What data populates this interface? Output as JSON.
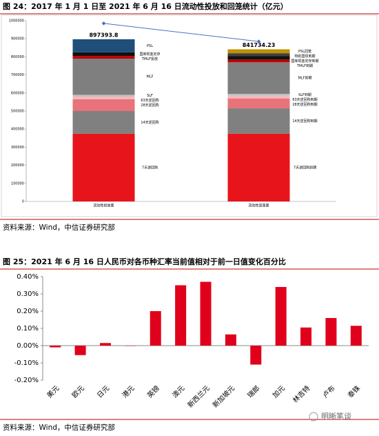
{
  "chart_data": [
    {
      "type": "stacked-bar",
      "title": "图 24：2017 年 1 月 1 日至 2021 年 6 月 16 日流动性投放和回笼统计（亿元）",
      "source": "资料来源：Wind，中信证券研究部",
      "categories": [
        "流动性投放量",
        "流动性回笼量"
      ],
      "stacks": [
        {
          "total": 897393.8,
          "segments": [
            {
              "name": "7天逆回购",
              "color": "#e8141b",
              "value": 375000
            },
            {
              "name": "14天逆回购",
              "color": "#808080",
              "value": 125000
            },
            {
              "name": "28天逆回购",
              "color": "#e8737a",
              "value": 65000
            },
            {
              "name": "63天逆回购",
              "color": "#f4b8bc",
              "value": 15000
            },
            {
              "name": "SLF",
              "color": "#c0c0c0",
              "value": 10000
            },
            {
              "name": "MLF",
              "color": "#7f7f7f",
              "value": 200000
            },
            {
              "name": "TMLF投放",
              "color": "#c00000",
              "value": 15000
            },
            {
              "name": "国库现金定存",
              "color": "#111111",
              "value": 20000
            },
            {
              "name": "PSL",
              "color": "#1f4e79",
              "value": 72393.8
            }
          ]
        },
        {
          "total": 841734.23,
          "segments": [
            {
              "name": "7天逆回购到期",
              "color": "#e8141b",
              "value": 375000
            },
            {
              "name": "14天逆回购到期",
              "color": "#808080",
              "value": 140000
            },
            {
              "name": "28天逆回购到期",
              "color": "#e8737a",
              "value": 55000
            },
            {
              "name": "63天逆回购到期",
              "color": "#f4b8bc",
              "value": 15000
            },
            {
              "name": "SLF到期",
              "color": "#c0c0c0",
              "value": 10000
            },
            {
              "name": "MLF到期",
              "color": "#7f7f7f",
              "value": 175000
            },
            {
              "name": "TMLF到期",
              "color": "#c00000",
              "value": 15000
            },
            {
              "name": "国库现金定存到期",
              "color": "#111111",
              "value": 20000
            },
            {
              "name": "特别国债到期",
              "color": "#404040",
              "value": 15000
            },
            {
              "name": "PSL回笼",
              "color": "#bf9000",
              "value": 21734.23
            }
          ]
        }
      ],
      "line": {
        "color": "#4472c4",
        "values": [
          985000,
          885000
        ]
      },
      "ylim": [
        0,
        1000000
      ],
      "yticks": [
        0,
        100000,
        200000,
        300000,
        400000,
        500000,
        600000,
        700000,
        800000,
        900000,
        1000000
      ]
    },
    {
      "type": "bar",
      "title": "图 25：2021 年 6 月 16 日人民币对各币种汇率当前值相对于前一日值变化百分比",
      "source": "资料来源：Wind，中信证券研究部",
      "categories": [
        "美元",
        "欧元",
        "日元",
        "港元",
        "英镑",
        "澳元",
        "新西兰元",
        "新加坡元",
        "瑞郎",
        "加元",
        "林吉特",
        "卢布",
        "泰铢"
      ],
      "values": [
        -0.01,
        -0.055,
        0.015,
        -0.002,
        0.2,
        0.35,
        0.37,
        0.065,
        -0.11,
        0.34,
        0.105,
        0.16,
        0.115
      ],
      "color": "#e0001b",
      "ylim": [
        -0.2,
        0.4
      ],
      "yticks": [
        {
          "value": -0.2,
          "label": "-0.20%"
        },
        {
          "value": -0.1,
          "label": "-0.10%"
        },
        {
          "value": 0,
          "label": "0.00%"
        },
        {
          "value": 0.1,
          "label": "0.10%"
        },
        {
          "value": 0.2,
          "label": "0.20%"
        },
        {
          "value": 0.3,
          "label": "0.30%"
        },
        {
          "value": 0.4,
          "label": "0.40%"
        }
      ]
    }
  ],
  "watermark": "明晰笔谈"
}
